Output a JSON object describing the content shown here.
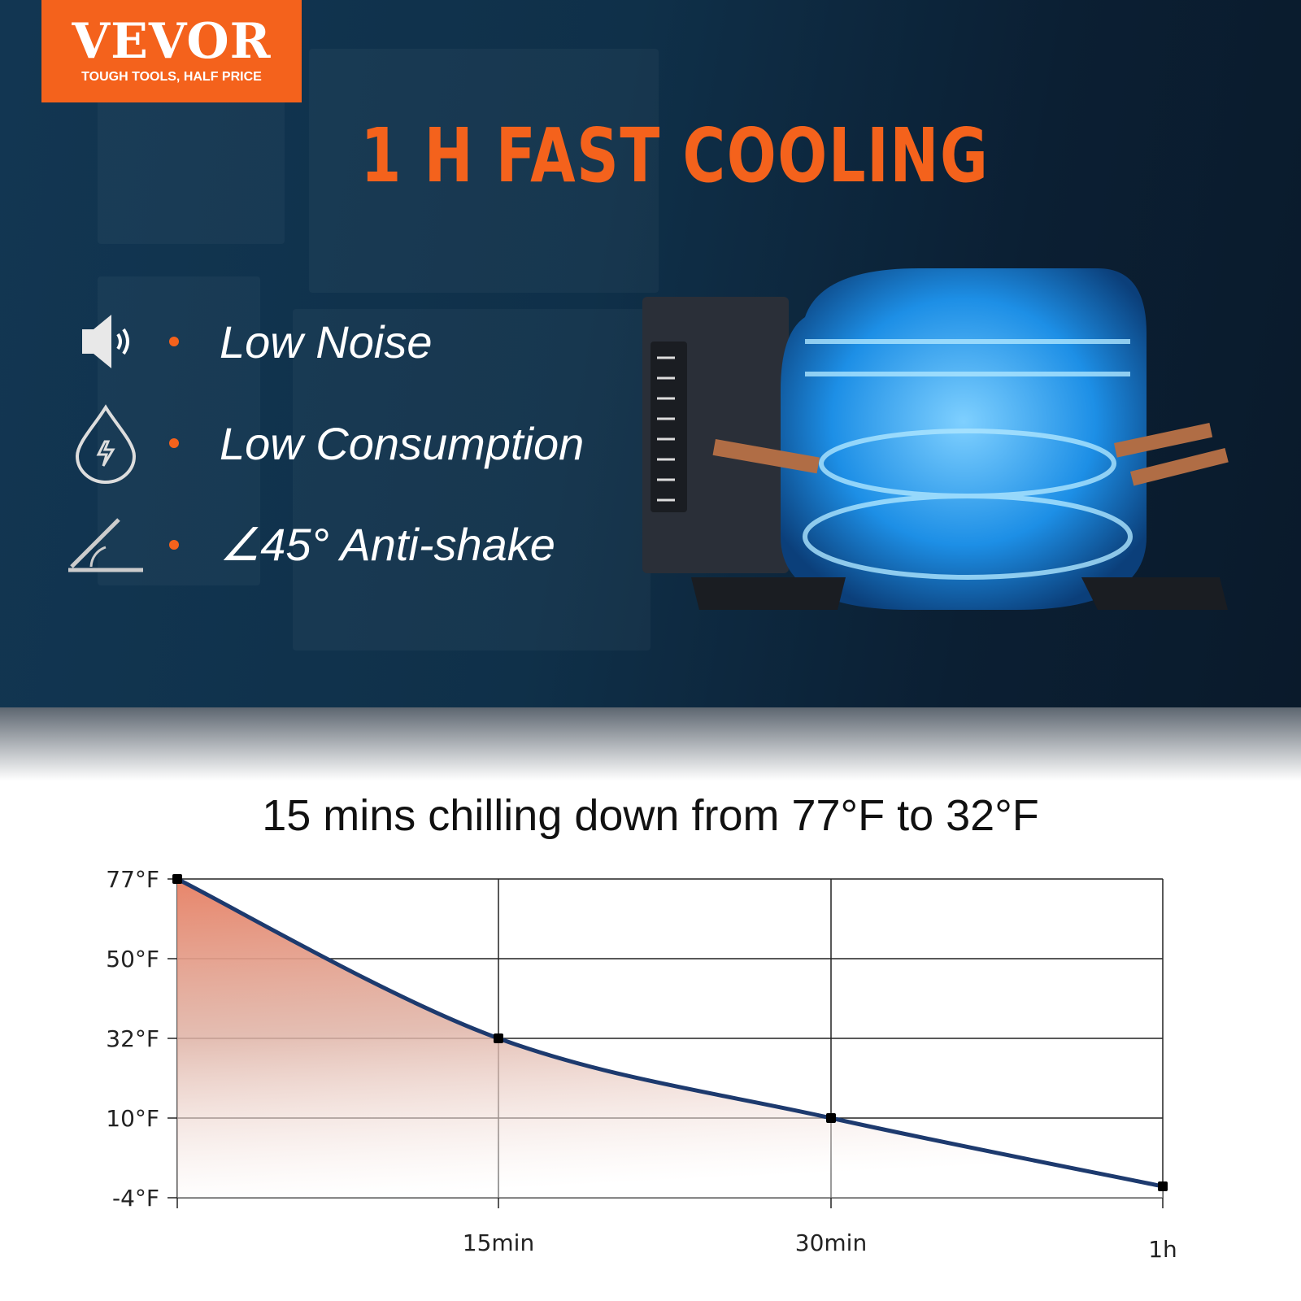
{
  "logo": {
    "brand": "VEVOR",
    "tagline": "TOUGH TOOLS, HALF PRICE"
  },
  "headline": "1 H FAST COOLING",
  "features": [
    {
      "icon": "speaker-icon",
      "label": "Low Noise"
    },
    {
      "icon": "energy-drop-icon",
      "label": "Low Consumption"
    },
    {
      "icon": "angle-icon",
      "label": "∠45° Anti-shake"
    }
  ],
  "colors": {
    "accent": "#f4621c",
    "navy": "#0f3049",
    "line": "#1d3a6e",
    "fill_top": "#e8856a"
  },
  "chart_data": {
    "type": "area",
    "title": "15 mins chilling down from 77°F to 32°F",
    "xlabel": "",
    "ylabel": "",
    "x_ticks": [
      "",
      "15min",
      "30min",
      "1h"
    ],
    "y_ticks": [
      "77°F",
      "50°F",
      "32°F",
      "10°F",
      "-4°F"
    ],
    "y_tick_values": [
      77,
      50,
      32,
      10,
      -4
    ],
    "x": [
      "0",
      "15min",
      "30min",
      "1h"
    ],
    "values": [
      77,
      32,
      10,
      -2
    ],
    "grid": true,
    "legend": "none"
  }
}
